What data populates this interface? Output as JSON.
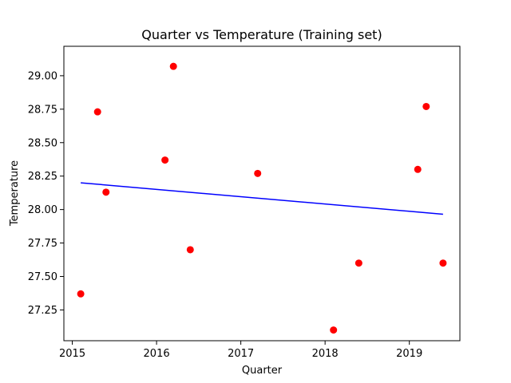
{
  "chart_data": {
    "type": "scatter",
    "title": "Quarter vs Temperature (Training set)",
    "xlabel": "Quarter",
    "ylabel": "Temperature",
    "xlim": [
      2014.9,
      2019.6
    ],
    "ylim": [
      27.02,
      29.22
    ],
    "xticks": [
      2015,
      2016,
      2017,
      2018,
      2019
    ],
    "xtick_labels": [
      "2015",
      "2016",
      "2017",
      "2018",
      "2019"
    ],
    "yticks": [
      27.25,
      27.5,
      27.75,
      28.0,
      28.25,
      28.5,
      28.75,
      29.0
    ],
    "ytick_labels": [
      "27.25",
      "27.50",
      "27.75",
      "28.00",
      "28.25",
      "28.50",
      "28.75",
      "29.00"
    ],
    "grid": false,
    "series": [
      {
        "type": "scatter",
        "color": "#ff0000",
        "points": [
          {
            "x": 2015.1,
            "y": 27.37
          },
          {
            "x": 2015.3,
            "y": 28.73
          },
          {
            "x": 2015.4,
            "y": 28.13
          },
          {
            "x": 2016.1,
            "y": 28.37
          },
          {
            "x": 2016.2,
            "y": 29.07
          },
          {
            "x": 2016.4,
            "y": 27.7
          },
          {
            "x": 2017.2,
            "y": 28.27
          },
          {
            "x": 2018.1,
            "y": 27.1
          },
          {
            "x": 2018.4,
            "y": 27.6
          },
          {
            "x": 2019.1,
            "y": 28.3
          },
          {
            "x": 2019.2,
            "y": 28.77
          },
          {
            "x": 2019.4,
            "y": 27.6
          }
        ]
      },
      {
        "type": "line",
        "color": "#0000ff",
        "points": [
          {
            "x": 2015.1,
            "y": 28.2
          },
          {
            "x": 2019.4,
            "y": 27.965
          }
        ]
      }
    ]
  }
}
